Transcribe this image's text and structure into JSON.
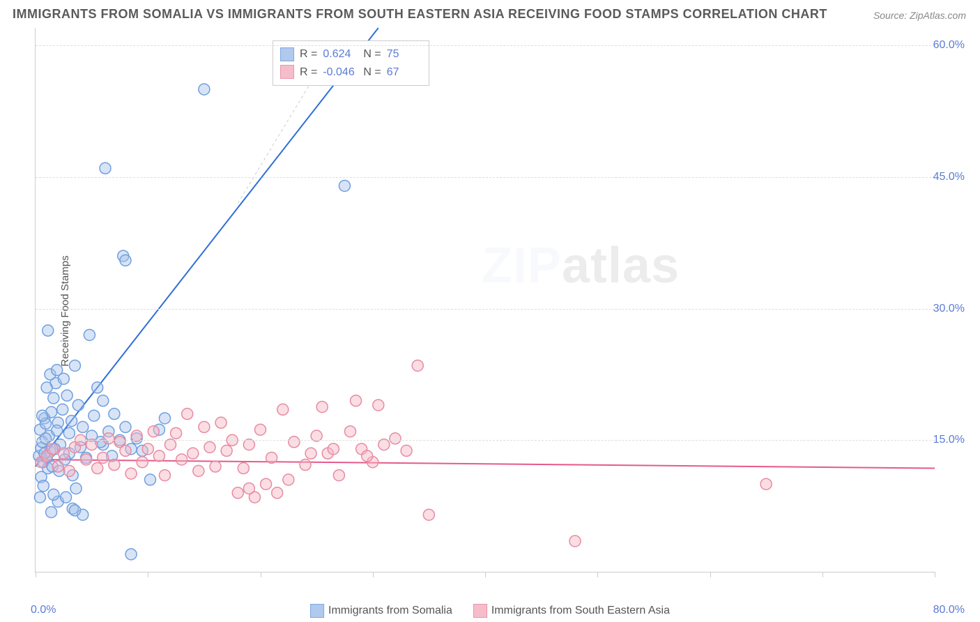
{
  "title": "IMMIGRANTS FROM SOMALIA VS IMMIGRANTS FROM SOUTH EASTERN ASIA RECEIVING FOOD STAMPS CORRELATION CHART",
  "source": "Source: ZipAtlas.com",
  "watermark_a": "ZIP",
  "watermark_b": "atlas",
  "chart": {
    "type": "scatter",
    "y_axis_label": "Receiving Food Stamps",
    "xlim": [
      0,
      80
    ],
    "ylim": [
      0,
      62
    ],
    "x_min_label": "0.0%",
    "x_max_label": "80.0%",
    "y_ticks": [
      15,
      30,
      45,
      60
    ],
    "y_tick_labels": [
      "15.0%",
      "30.0%",
      "45.0%",
      "60.0%"
    ],
    "x_ticks": [
      0,
      10,
      20,
      30,
      40,
      50,
      60,
      70,
      80
    ],
    "background_color": "#ffffff",
    "grid_color": "#dddddd",
    "axis_color": "#cccccc",
    "marker_radius": 8,
    "marker_stroke_width": 1.5,
    "line_width": 2,
    "series": [
      {
        "name": "Immigrants from Somalia",
        "fill": "#a8c4ec",
        "stroke": "#6f9fe0",
        "fill_opacity": 0.45,
        "line_color": "#2e6fd6",
        "r_value": "0.624",
        "n_value": "75",
        "trend": {
          "x1": 0,
          "y1": 12,
          "x2": 30.5,
          "y2": 62
        },
        "points": [
          [
            0.3,
            13.2
          ],
          [
            0.5,
            14.1
          ],
          [
            0.7,
            12.5
          ],
          [
            0.4,
            16.2
          ],
          [
            0.8,
            17.5
          ],
          [
            1.0,
            13.0
          ],
          [
            1.2,
            15.5
          ],
          [
            1.1,
            11.8
          ],
          [
            0.6,
            14.8
          ],
          [
            0.9,
            16.9
          ],
          [
            1.4,
            18.2
          ],
          [
            1.3,
            13.7
          ],
          [
            0.5,
            10.8
          ],
          [
            1.6,
            19.8
          ],
          [
            1.8,
            21.5
          ],
          [
            2.0,
            17.0
          ],
          [
            2.2,
            14.5
          ],
          [
            1.9,
            16.1
          ],
          [
            2.5,
            22.0
          ],
          [
            2.8,
            20.1
          ],
          [
            1.5,
            12.0
          ],
          [
            0.7,
            9.8
          ],
          [
            0.4,
            8.5
          ],
          [
            3.0,
            15.8
          ],
          [
            3.2,
            17.2
          ],
          [
            2.1,
            11.5
          ],
          [
            3.5,
            23.5
          ],
          [
            3.8,
            19.0
          ],
          [
            4.0,
            14.2
          ],
          [
            4.2,
            16.5
          ],
          [
            1.0,
            21.0
          ],
          [
            1.3,
            22.5
          ],
          [
            1.7,
            14.0
          ],
          [
            0.8,
            13.5
          ],
          [
            4.5,
            13.0
          ],
          [
            5.0,
            15.5
          ],
          [
            5.2,
            17.8
          ],
          [
            5.5,
            21.0
          ],
          [
            2.4,
            18.5
          ],
          [
            1.1,
            27.5
          ],
          [
            4.8,
            27.0
          ],
          [
            6.0,
            14.5
          ],
          [
            6.5,
            16.0
          ],
          [
            6.8,
            13.2
          ],
          [
            7.0,
            18.0
          ],
          [
            7.5,
            15.0
          ],
          [
            3.0,
            13.5
          ],
          [
            3.3,
            11.0
          ],
          [
            0.6,
            17.8
          ],
          [
            8.0,
            16.5
          ],
          [
            8.5,
            14.0
          ],
          [
            9.0,
            15.2
          ],
          [
            1.9,
            23.0
          ],
          [
            2.6,
            12.8
          ],
          [
            6.2,
            46.0
          ],
          [
            6.0,
            19.5
          ],
          [
            9.5,
            13.8
          ],
          [
            10.2,
            10.5
          ],
          [
            11.0,
            16.2
          ],
          [
            11.5,
            17.5
          ],
          [
            7.8,
            36.0
          ],
          [
            8.0,
            35.5
          ],
          [
            5.8,
            14.8
          ],
          [
            0.9,
            15.2
          ],
          [
            8.5,
            2.0
          ],
          [
            3.3,
            7.2
          ],
          [
            4.2,
            6.5
          ],
          [
            1.4,
            6.8
          ],
          [
            3.5,
            7.0
          ],
          [
            15.0,
            55.0
          ],
          [
            27.5,
            44.0
          ],
          [
            3.6,
            9.5
          ],
          [
            2.0,
            8.0
          ],
          [
            2.7,
            8.5
          ],
          [
            1.6,
            8.8
          ]
        ]
      },
      {
        "name": "Immigrants from South Eastern Asia",
        "fill": "#f4b6c4",
        "stroke": "#e88aa2",
        "fill_opacity": 0.45,
        "line_color": "#e55a8a",
        "r_value": "-0.046",
        "n_value": "67",
        "trend": {
          "x1": 0,
          "y1": 12.8,
          "x2": 80,
          "y2": 11.8
        },
        "points": [
          [
            0.5,
            12.5
          ],
          [
            1.0,
            13.2
          ],
          [
            1.5,
            14.0
          ],
          [
            2.0,
            12.0
          ],
          [
            2.5,
            13.5
          ],
          [
            3.0,
            11.5
          ],
          [
            3.5,
            14.2
          ],
          [
            4.0,
            15.0
          ],
          [
            4.5,
            12.8
          ],
          [
            5.0,
            14.5
          ],
          [
            5.5,
            11.8
          ],
          [
            6.0,
            13.0
          ],
          [
            6.5,
            15.2
          ],
          [
            7.0,
            12.2
          ],
          [
            7.5,
            14.8
          ],
          [
            8.0,
            13.8
          ],
          [
            8.5,
            11.2
          ],
          [
            9.0,
            15.5
          ],
          [
            9.5,
            12.5
          ],
          [
            10.0,
            14.0
          ],
          [
            10.5,
            16.0
          ],
          [
            11.0,
            13.2
          ],
          [
            11.5,
            11.0
          ],
          [
            12.0,
            14.5
          ],
          [
            12.5,
            15.8
          ],
          [
            13.0,
            12.8
          ],
          [
            13.5,
            18.0
          ],
          [
            14.0,
            13.5
          ],
          [
            14.5,
            11.5
          ],
          [
            15.0,
            16.5
          ],
          [
            15.5,
            14.2
          ],
          [
            16.0,
            12.0
          ],
          [
            16.5,
            17.0
          ],
          [
            17.0,
            13.8
          ],
          [
            17.5,
            15.0
          ],
          [
            18.0,
            9.0
          ],
          [
            18.5,
            11.8
          ],
          [
            19.0,
            14.5
          ],
          [
            19.5,
            8.5
          ],
          [
            20.0,
            16.2
          ],
          [
            21.0,
            13.0
          ],
          [
            22.0,
            18.5
          ],
          [
            22.5,
            10.5
          ],
          [
            23.0,
            14.8
          ],
          [
            24.0,
            12.2
          ],
          [
            25.0,
            15.5
          ],
          [
            25.5,
            18.8
          ],
          [
            26.0,
            13.5
          ],
          [
            27.0,
            11.0
          ],
          [
            28.0,
            16.0
          ],
          [
            28.5,
            19.5
          ],
          [
            29.0,
            14.0
          ],
          [
            30.0,
            12.5
          ],
          [
            30.5,
            19.0
          ],
          [
            32.0,
            15.2
          ],
          [
            33.0,
            13.8
          ],
          [
            34.0,
            23.5
          ],
          [
            35.0,
            6.5
          ],
          [
            31.0,
            14.5
          ],
          [
            29.5,
            13.2
          ],
          [
            26.5,
            14.0
          ],
          [
            24.5,
            13.5
          ],
          [
            20.5,
            10.0
          ],
          [
            48.0,
            3.5
          ],
          [
            65.0,
            10.0
          ],
          [
            19.0,
            9.5
          ],
          [
            21.5,
            9.0
          ]
        ]
      }
    ]
  },
  "legend": {
    "series1_label": "Immigrants from Somalia",
    "series2_label": "Immigrants from South Eastern Asia"
  },
  "stats": {
    "r_label": "R =",
    "n_label": "N ="
  }
}
